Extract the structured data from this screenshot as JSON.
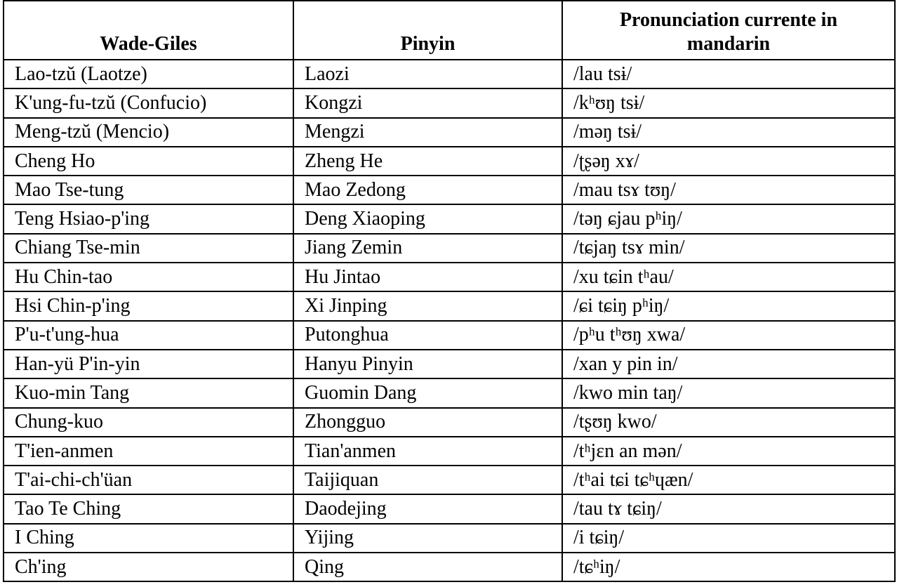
{
  "table": {
    "headers": [
      "Wade-Giles",
      "Pinyin",
      "Pronunciation currente in mandarin"
    ],
    "rows": [
      [
        "Lao-tzŭ (Laotze)",
        "Laozi",
        "/lau tsɨ/"
      ],
      [
        "K'ung-fu-tzŭ (Confucio)",
        "Kongzi",
        "/kʰʊŋ tsɨ/"
      ],
      [
        "Meng-tzŭ (Mencio)",
        "Mengzi",
        "/məŋ tsɨ/"
      ],
      [
        "Cheng Ho",
        "Zheng He",
        "/ʈʂəŋ xɤ/"
      ],
      [
        "Mao Tse-tung",
        "Mao Zedong",
        "/mau tsɤ tʊŋ/"
      ],
      [
        "Teng Hsiao-p'ing",
        "Deng Xiaoping",
        "/təŋ ɕjau pʰiŋ/"
      ],
      [
        "Chiang Tse-min",
        "Jiang Zemin",
        "/tɕjaŋ tsɤ min/"
      ],
      [
        "Hu Chin-tao",
        "Hu Jintao",
        "/xu tɕin tʰau/"
      ],
      [
        "Hsi Chin-p'ing",
        "Xi Jinping",
        "/ɕi tɕiŋ pʰiŋ/"
      ],
      [
        "P'u-t'ung-hua",
        "Putonghua",
        "/pʰu tʰʊŋ xwa/"
      ],
      [
        "Han-yü P'in-yin",
        "Hanyu Pinyin",
        "/xan y pin in/"
      ],
      [
        "Kuo-min Tang",
        "Guomin Dang",
        "/kwo min taŋ/"
      ],
      [
        "Chung-kuo",
        "Zhongguo",
        "/tʂʊŋ kwo/"
      ],
      [
        "T'ien-anmen",
        "Tian'anmen",
        "/tʰjɛn an mən/"
      ],
      [
        "T'ai-chi-ch'üan",
        "Taijiquan",
        "/tʰai tɕi tɕʰɥæn/"
      ],
      [
        "Tao Te Ching",
        "Daodejing",
        "/tau tɤ tɕiŋ/"
      ],
      [
        "I Ching",
        "Yijing",
        "/i tɕiŋ/"
      ],
      [
        "Ch'ing",
        "Qing",
        "/tɕʰiŋ/"
      ]
    ]
  }
}
